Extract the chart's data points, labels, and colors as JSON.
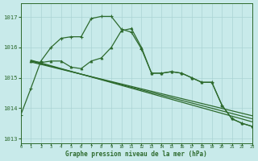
{
  "title": "Graphe pression niveau de la mer (hPa)",
  "bg": "#c8eaea",
  "grid_color": "#aad4d4",
  "line_color": "#2d6a2d",
  "ylim": [
    1012.85,
    1017.45
  ],
  "xlim": [
    0,
    23
  ],
  "yticks": [
    1013,
    1014,
    1015,
    1016,
    1017
  ],
  "xticks": [
    0,
    1,
    2,
    3,
    4,
    5,
    6,
    7,
    8,
    9,
    10,
    11,
    12,
    13,
    14,
    15,
    16,
    17,
    18,
    19,
    20,
    21,
    22,
    23
  ],
  "line1_x": [
    0,
    1,
    2,
    3,
    4,
    5,
    6,
    7,
    8,
    9,
    10,
    11,
    12,
    13,
    14,
    15,
    16,
    17,
    18,
    19,
    20,
    21,
    22,
    23
  ],
  "line1_y": [
    1013.78,
    1014.65,
    1015.55,
    1016.0,
    1016.3,
    1016.35,
    1016.35,
    1016.95,
    1017.02,
    1017.02,
    1016.6,
    1016.5,
    1015.95,
    1015.15,
    1015.15,
    1015.2,
    1015.15,
    1015.0,
    1014.85,
    1014.85,
    1014.1,
    1013.65,
    1013.5,
    1013.4
  ],
  "line2_x": [
    1,
    2,
    3,
    4,
    5,
    6,
    7,
    8,
    9,
    10,
    11,
    12,
    13,
    14,
    15,
    16,
    17,
    18,
    19,
    20,
    21,
    22,
    23
  ],
  "line2_y": [
    1015.55,
    1015.5,
    1015.55,
    1015.55,
    1015.35,
    1015.3,
    1015.55,
    1015.65,
    1016.0,
    1016.55,
    1016.62,
    1016.0,
    1015.15,
    1015.15,
    1015.2,
    1015.15,
    1015.0,
    1014.85,
    1014.85,
    1014.1,
    1013.65,
    1013.5,
    1013.4
  ],
  "trend1_x": [
    1,
    23
  ],
  "trend1_y": [
    1015.55,
    1013.65
  ],
  "trend2_x": [
    1,
    23
  ],
  "trend2_y": [
    1015.58,
    1013.55
  ],
  "trend3_x": [
    1,
    23
  ],
  "trend3_y": [
    1015.52,
    1013.75
  ]
}
